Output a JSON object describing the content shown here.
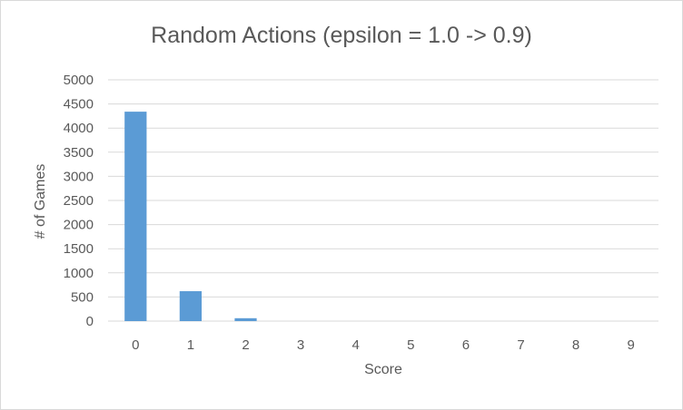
{
  "chart_data": {
    "type": "bar",
    "title": "Random Actions (epsilon = 1.0 -> 0.9)",
    "xlabel": "Score",
    "ylabel": "# of Games",
    "categories": [
      "0",
      "1",
      "2",
      "3",
      "4",
      "5",
      "6",
      "7",
      "8",
      "9"
    ],
    "values": [
      4340,
      620,
      60,
      0,
      0,
      0,
      0,
      0,
      0,
      0
    ],
    "ylim": [
      0,
      5000
    ],
    "yticks": [
      "0",
      "500",
      "1000",
      "1500",
      "2000",
      "2500",
      "3000",
      "3500",
      "4000",
      "4500",
      "5000"
    ],
    "grid": true,
    "legend": "none",
    "colors": {
      "bar": "#5b9bd5",
      "grid": "#d9d9d9"
    }
  }
}
